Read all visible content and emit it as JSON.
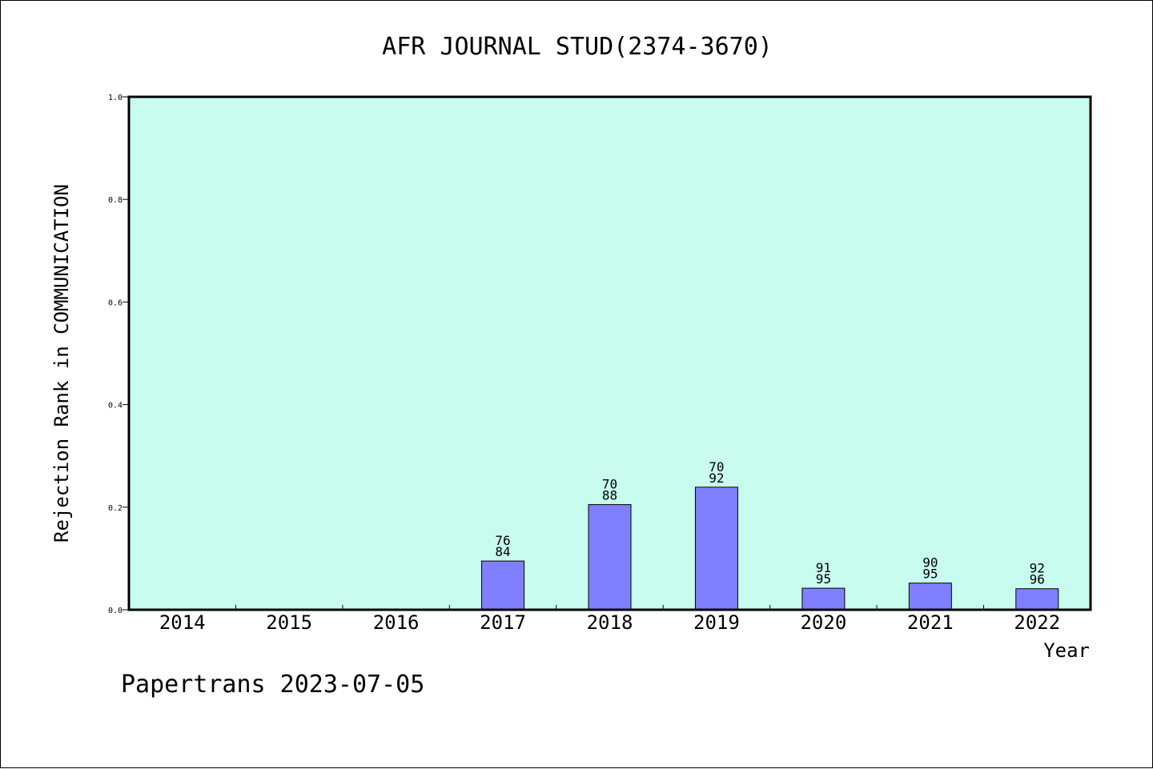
{
  "chart_data": {
    "type": "bar",
    "title": "AFR JOURNAL STUD(2374-3670)",
    "xlabel": "Year",
    "ylabel": "Rejection Rank in COMMUNICATION",
    "categories": [
      "2014",
      "2015",
      "2016",
      "2017",
      "2018",
      "2019",
      "2020",
      "2021",
      "2022"
    ],
    "values": [
      0,
      0,
      0,
      0.095,
      0.205,
      0.239,
      0.042,
      0.052,
      0.041
    ],
    "bar_labels": [
      [
        "",
        ""
      ],
      [
        "",
        ""
      ],
      [
        "",
        ""
      ],
      [
        "76",
        "84"
      ],
      [
        "70",
        "88"
      ],
      [
        "70",
        "92"
      ],
      [
        "91",
        "95"
      ],
      [
        "90",
        "95"
      ],
      [
        "92",
        "96"
      ]
    ],
    "ylim": [
      0,
      1.0
    ],
    "yticks": [
      "0.0",
      "0.2",
      "0.4",
      "0.6",
      "0.8",
      "1.0"
    ],
    "grid": false,
    "colors": {
      "plot_background": "#c8fcee",
      "bar_fill": "#8080ff",
      "bar_stroke": "#000000"
    }
  },
  "footer": "Papertrans 2023-07-05"
}
